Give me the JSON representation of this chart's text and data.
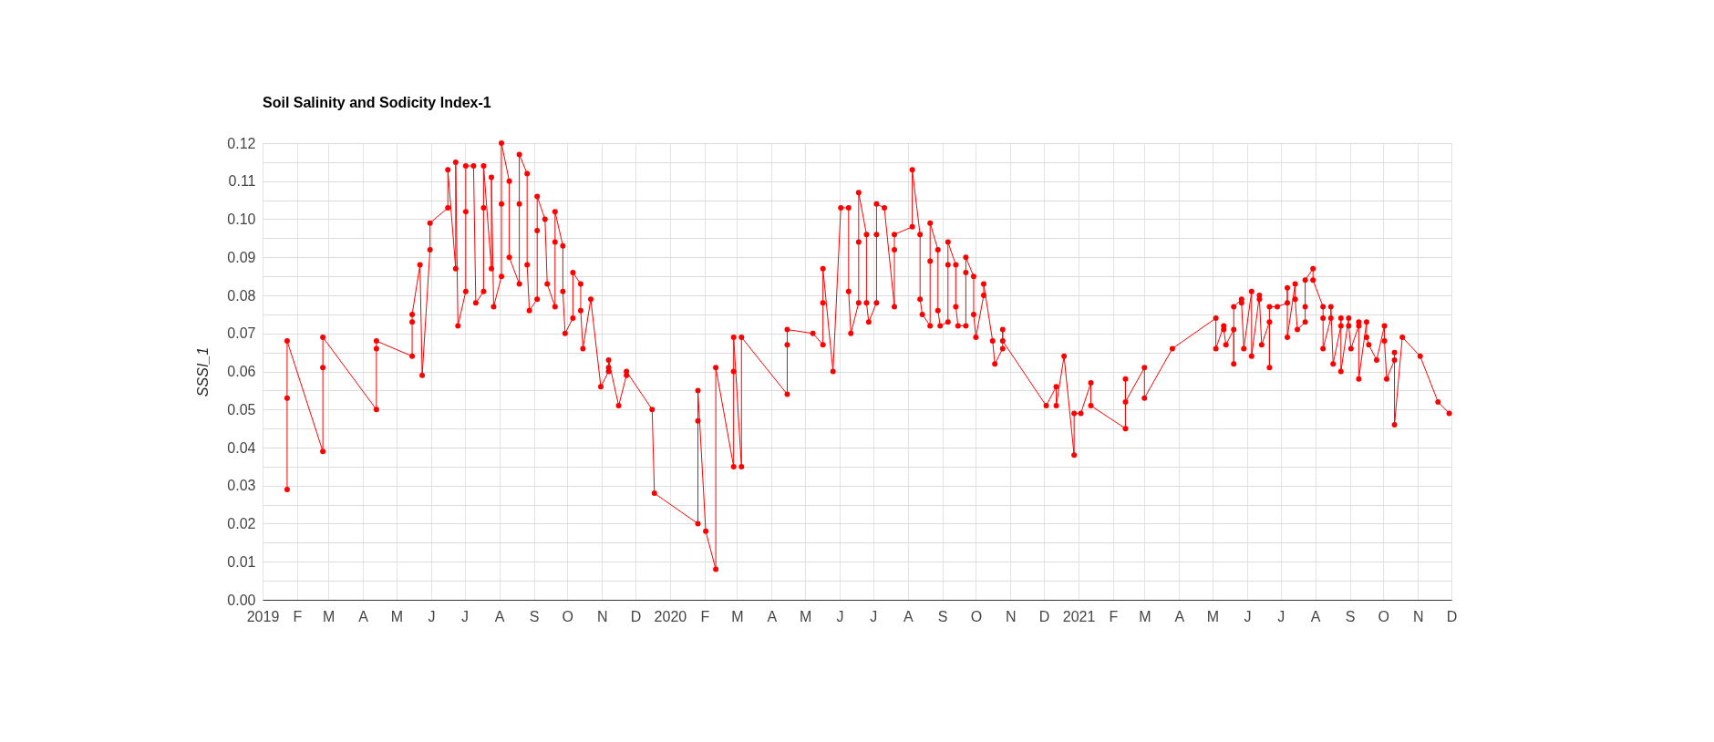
{
  "chart_data": {
    "type": "line",
    "title": "Soil Salinity and Sodicity Index-1",
    "ylabel": "SSSI_1",
    "marker": "circle",
    "line_style": "solid",
    "grid": true,
    "xlim": [
      "2019-01-01",
      "2021-12-01"
    ],
    "xticks": [
      {
        "value": "2019-01-01",
        "label": "2019"
      },
      {
        "value": "2019-02-01",
        "label": "F"
      },
      {
        "value": "2019-03-01",
        "label": "M"
      },
      {
        "value": "2019-04-01",
        "label": "A"
      },
      {
        "value": "2019-05-01",
        "label": "M"
      },
      {
        "value": "2019-06-01",
        "label": "J"
      },
      {
        "value": "2019-07-01",
        "label": "J"
      },
      {
        "value": "2019-08-01",
        "label": "A"
      },
      {
        "value": "2019-09-01",
        "label": "S"
      },
      {
        "value": "2019-10-01",
        "label": "O"
      },
      {
        "value": "2019-11-01",
        "label": "N"
      },
      {
        "value": "2019-12-01",
        "label": "D"
      },
      {
        "value": "2020-01-01",
        "label": "2020"
      },
      {
        "value": "2020-02-01",
        "label": "F"
      },
      {
        "value": "2020-03-01",
        "label": "M"
      },
      {
        "value": "2020-04-01",
        "label": "A"
      },
      {
        "value": "2020-05-01",
        "label": "M"
      },
      {
        "value": "2020-06-01",
        "label": "J"
      },
      {
        "value": "2020-07-01",
        "label": "J"
      },
      {
        "value": "2020-08-01",
        "label": "A"
      },
      {
        "value": "2020-09-01",
        "label": "S"
      },
      {
        "value": "2020-10-01",
        "label": "O"
      },
      {
        "value": "2020-11-01",
        "label": "N"
      },
      {
        "value": "2020-12-01",
        "label": "D"
      },
      {
        "value": "2021-01-01",
        "label": "2021"
      },
      {
        "value": "2021-02-01",
        "label": "F"
      },
      {
        "value": "2021-03-01",
        "label": "M"
      },
      {
        "value": "2021-04-01",
        "label": "A"
      },
      {
        "value": "2021-05-01",
        "label": "M"
      },
      {
        "value": "2021-06-01",
        "label": "J"
      },
      {
        "value": "2021-07-01",
        "label": "J"
      },
      {
        "value": "2021-08-01",
        "label": "A"
      },
      {
        "value": "2021-09-01",
        "label": "S"
      },
      {
        "value": "2021-10-01",
        "label": "O"
      },
      {
        "value": "2021-11-01",
        "label": "N"
      },
      {
        "value": "2021-12-01",
        "label": "D"
      }
    ],
    "ylim": [
      0,
      0.12
    ],
    "yticks": [
      {
        "value": 0,
        "label": "0.00"
      },
      {
        "value": 0.005,
        "label": null
      },
      {
        "value": 0.01,
        "label": "0.01"
      },
      {
        "value": 0.015,
        "label": null
      },
      {
        "value": 0.02,
        "label": "0.02"
      },
      {
        "value": 0.025,
        "label": null
      },
      {
        "value": 0.03,
        "label": "0.03"
      },
      {
        "value": 0.035,
        "label": null
      },
      {
        "value": 0.04,
        "label": "0.04"
      },
      {
        "value": 0.045,
        "label": null
      },
      {
        "value": 0.05,
        "label": "0.05"
      },
      {
        "value": 0.055,
        "label": null
      },
      {
        "value": 0.06,
        "label": "0.06"
      },
      {
        "value": 0.065,
        "label": null
      },
      {
        "value": 0.07,
        "label": "0.07"
      },
      {
        "value": 0.075,
        "label": null
      },
      {
        "value": 0.08,
        "label": "0.08"
      },
      {
        "value": 0.085,
        "label": null
      },
      {
        "value": 0.09,
        "label": "0.09"
      },
      {
        "value": 0.095,
        "label": null
      },
      {
        "value": 0.1,
        "label": "0.10"
      },
      {
        "value": 0.105,
        "label": null
      },
      {
        "value": 0.11,
        "label": "0.11"
      },
      {
        "value": 0.115,
        "label": null
      },
      {
        "value": 0.12,
        "label": "0.12"
      }
    ],
    "series": [
      {
        "color": "#ff0000",
        "x": [
          "2019-01-23",
          "2019-01-23",
          "2019-01-23",
          "2019-02-24",
          "2019-02-24",
          "2019-02-24",
          "2019-04-13",
          "2019-04-13",
          "2019-04-13",
          "2019-05-15",
          "2019-05-15",
          "2019-05-15",
          "2019-05-22",
          "2019-05-24",
          "2019-05-31",
          "2019-05-31",
          "2019-06-16",
          "2019-06-16",
          "2019-06-23",
          "2019-06-23",
          "2019-06-25",
          "2019-07-02",
          "2019-07-02",
          "2019-07-02",
          "2019-07-09",
          "2019-07-11",
          "2019-07-18",
          "2019-07-18",
          "2019-07-18",
          "2019-07-25",
          "2019-07-25",
          "2019-07-27",
          "2019-08-03",
          "2019-08-03",
          "2019-08-03",
          "2019-08-10",
          "2019-08-10",
          "2019-08-19",
          "2019-08-19",
          "2019-08-19",
          "2019-08-26",
          "2019-08-26",
          "2019-08-28",
          "2019-09-04",
          "2019-09-04",
          "2019-09-04",
          "2019-09-11",
          "2019-09-13",
          "2019-09-20",
          "2019-09-20",
          "2019-09-20",
          "2019-09-27",
          "2019-09-27",
          "2019-09-29",
          "2019-10-06",
          "2019-10-06",
          "2019-10-13",
          "2019-10-13",
          "2019-10-15",
          "2019-10-22",
          "2019-10-31",
          "2019-11-07",
          "2019-11-07",
          "2019-11-07",
          "2019-11-16",
          "2019-11-23",
          "2019-11-23",
          "2019-12-16",
          "2019-12-18",
          "2020-01-26",
          "2020-01-26",
          "2020-01-26",
          "2020-02-02",
          "2020-02-11",
          "2020-02-11",
          "2020-02-27",
          "2020-02-27",
          "2020-02-27",
          "2020-03-05",
          "2020-03-05",
          "2020-04-15",
          "2020-04-15",
          "2020-04-15",
          "2020-05-08",
          "2020-05-17",
          "2020-05-17",
          "2020-05-17",
          "2020-05-26",
          "2020-06-02",
          "2020-06-09",
          "2020-06-09",
          "2020-06-11",
          "2020-06-18",
          "2020-06-18",
          "2020-06-18",
          "2020-06-25",
          "2020-06-25",
          "2020-06-27",
          "2020-07-04",
          "2020-07-04",
          "2020-07-04",
          "2020-07-11",
          "2020-07-20",
          "2020-07-20",
          "2020-07-20",
          "2020-08-05",
          "2020-08-05",
          "2020-08-12",
          "2020-08-12",
          "2020-08-14",
          "2020-08-21",
          "2020-08-21",
          "2020-08-21",
          "2020-08-28",
          "2020-08-28",
          "2020-08-30",
          "2020-09-06",
          "2020-09-06",
          "2020-09-06",
          "2020-09-13",
          "2020-09-13",
          "2020-09-15",
          "2020-09-22",
          "2020-09-22",
          "2020-09-22",
          "2020-09-29",
          "2020-09-29",
          "2020-10-01",
          "2020-10-08",
          "2020-10-08",
          "2020-10-16",
          "2020-10-18",
          "2020-10-25",
          "2020-10-25",
          "2020-10-25",
          "2020-12-03",
          "2020-12-12",
          "2020-12-12",
          "2020-12-19",
          "2020-12-28",
          "2020-12-28",
          "2021-01-03",
          "2021-01-12",
          "2021-01-12",
          "2021-02-12",
          "2021-02-12",
          "2021-02-12",
          "2021-03-01",
          "2021-03-01",
          "2021-03-26",
          "2021-05-04",
          "2021-05-04",
          "2021-05-11",
          "2021-05-11",
          "2021-05-13",
          "2021-05-20",
          "2021-05-20",
          "2021-05-20",
          "2021-05-27",
          "2021-05-27",
          "2021-05-29",
          "2021-06-05",
          "2021-06-05",
          "2021-06-12",
          "2021-06-12",
          "2021-06-14",
          "2021-06-21",
          "2021-06-21",
          "2021-06-21",
          "2021-06-28",
          "2021-07-07",
          "2021-07-07",
          "2021-07-07",
          "2021-07-14",
          "2021-07-14",
          "2021-07-16",
          "2021-07-23",
          "2021-07-23",
          "2021-07-23",
          "2021-07-30",
          "2021-07-30",
          "2021-08-08",
          "2021-08-08",
          "2021-08-08",
          "2021-08-15",
          "2021-08-15",
          "2021-08-17",
          "2021-08-24",
          "2021-08-24",
          "2021-08-24",
          "2021-08-31",
          "2021-08-31",
          "2021-09-02",
          "2021-09-09",
          "2021-09-09",
          "2021-09-09",
          "2021-09-16",
          "2021-09-16",
          "2021-09-18",
          "2021-09-25",
          "2021-10-02",
          "2021-10-02",
          "2021-10-04",
          "2021-10-11",
          "2021-10-11",
          "2021-10-11",
          "2021-10-18",
          "2021-11-03",
          "2021-11-19",
          "2021-11-29"
        ],
        "values": [
          0.029,
          0.053,
          0.068,
          0.039,
          0.061,
          0.069,
          0.05,
          0.066,
          0.068,
          0.064,
          0.073,
          0.075,
          0.088,
          0.059,
          0.092,
          0.099,
          0.103,
          0.113,
          0.087,
          0.115,
          0.072,
          0.081,
          0.102,
          0.114,
          0.114,
          0.078,
          0.081,
          0.103,
          0.114,
          0.087,
          0.111,
          0.077,
          0.085,
          0.104,
          0.12,
          0.11,
          0.09,
          0.083,
          0.104,
          0.117,
          0.112,
          0.088,
          0.076,
          0.079,
          0.097,
          0.106,
          0.1,
          0.083,
          0.077,
          0.094,
          0.102,
          0.093,
          0.081,
          0.07,
          0.074,
          0.086,
          0.083,
          0.076,
          0.066,
          0.079,
          0.056,
          0.06,
          0.061,
          0.063,
          0.051,
          0.059,
          0.06,
          0.05,
          0.028,
          0.02,
          0.047,
          0.055,
          0.018,
          0.008,
          0.061,
          0.035,
          0.06,
          0.069,
          0.035,
          0.069,
          0.054,
          0.067,
          0.071,
          0.07,
          0.067,
          0.078,
          0.087,
          0.06,
          0.103,
          0.103,
          0.081,
          0.07,
          0.078,
          0.094,
          0.107,
          0.096,
          0.078,
          0.073,
          0.078,
          0.096,
          0.104,
          0.103,
          0.077,
          0.092,
          0.096,
          0.098,
          0.113,
          0.096,
          0.079,
          0.075,
          0.072,
          0.089,
          0.099,
          0.092,
          0.076,
          0.072,
          0.073,
          0.088,
          0.094,
          0.088,
          0.077,
          0.072,
          0.072,
          0.086,
          0.09,
          0.085,
          0.075,
          0.069,
          0.08,
          0.083,
          0.068,
          0.062,
          0.066,
          0.071,
          0.068,
          0.051,
          0.056,
          0.051,
          0.064,
          0.038,
          0.049,
          0.049,
          0.057,
          0.051,
          0.045,
          0.058,
          0.052,
          0.061,
          0.053,
          0.066,
          0.074,
          0.066,
          0.072,
          0.071,
          0.067,
          0.071,
          0.062,
          0.077,
          0.079,
          0.078,
          0.066,
          0.081,
          0.064,
          0.08,
          0.079,
          0.067,
          0.073,
          0.061,
          0.077,
          0.077,
          0.078,
          0.082,
          0.069,
          0.083,
          0.079,
          0.071,
          0.073,
          0.077,
          0.084,
          0.087,
          0.084,
          0.077,
          0.074,
          0.066,
          0.074,
          0.077,
          0.062,
          0.072,
          0.074,
          0.06,
          0.074,
          0.072,
          0.066,
          0.072,
          0.073,
          0.058,
          0.073,
          0.069,
          0.067,
          0.063,
          0.072,
          0.068,
          0.058,
          0.063,
          0.065,
          0.046,
          0.069,
          0.064,
          0.052,
          0.049
        ]
      }
    ]
  }
}
